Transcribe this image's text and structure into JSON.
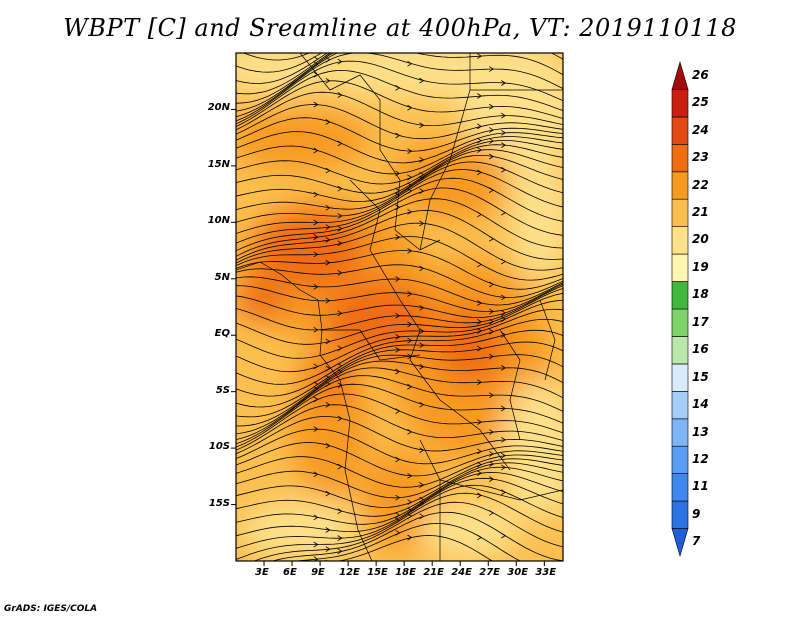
{
  "title": "WBPT [C] and Sreamline at 400hPa, VT: 2019110118",
  "credit": "GrADS: IGES/COLA",
  "map": {
    "lon_ticks": [
      "3E",
      "6E",
      "9E",
      "12E",
      "15E",
      "18E",
      "21E",
      "24E",
      "27E",
      "30E",
      "33E"
    ],
    "lat_ticks": [
      "20N",
      "15N",
      "10N",
      "5N",
      "EQ",
      "5S",
      "10S",
      "15S"
    ],
    "lon_range": [
      0,
      35
    ],
    "lat_range": [
      -20,
      25
    ]
  },
  "colorbar": {
    "labels": [
      "7",
      "9",
      "11",
      "12",
      "13",
      "14",
      "15",
      "16",
      "17",
      "18",
      "19",
      "20",
      "21",
      "22",
      "23",
      "24",
      "25",
      "26"
    ],
    "colors": [
      "#1f5fd6",
      "#2b72e6",
      "#3d87ee",
      "#5b9df3",
      "#7db5f6",
      "#a5cdf9",
      "#d8ecfb",
      "#b9e8a8",
      "#7ed36a",
      "#3fb83b",
      "#fff5b0",
      "#fde08a",
      "#fbbf4f",
      "#f79a22",
      "#ef6d12",
      "#e24812",
      "#c91f12",
      "#a10d0d"
    ]
  }
}
